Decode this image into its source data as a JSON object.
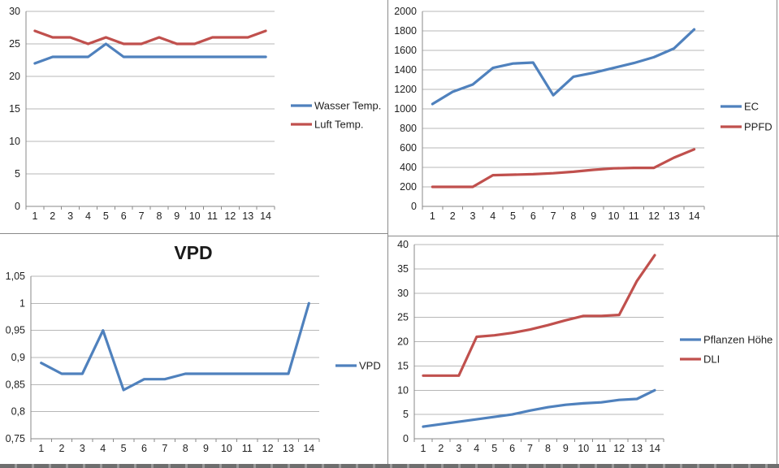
{
  "colors": {
    "series_blue": "#4F81BD",
    "series_red": "#C0504D",
    "gridline": "#B7B7B7",
    "axis_line": "#8A8A8A",
    "tick_text": "#1F1F1F",
    "divider": "#8A8A8A",
    "bottom_strip_dark": "#6E6E6E",
    "bottom_strip_light": "#9A9A9A"
  },
  "chart_data": [
    {
      "id": "temperature",
      "type": "line",
      "title": "",
      "categories": [
        "1",
        "2",
        "3",
        "4",
        "5",
        "6",
        "7",
        "8",
        "9",
        "10",
        "11",
        "12",
        "13",
        "14"
      ],
      "series": [
        {
          "name": "Wasser Temp.",
          "color": "#4F81BD",
          "values": [
            22,
            23,
            23,
            23,
            25,
            23,
            23,
            23,
            23,
            23,
            23,
            23,
            23,
            23
          ]
        },
        {
          "name": "Luft Temp.",
          "color": "#C0504D",
          "values": [
            27,
            26,
            26,
            25,
            26,
            25,
            25,
            26,
            25,
            25,
            26,
            26,
            26,
            27
          ]
        }
      ],
      "ylim": [
        0,
        30
      ],
      "ystep": 5,
      "ytick_labels": [
        "0",
        "5",
        "10",
        "15",
        "20",
        "25",
        "30"
      ],
      "legend_position": "right",
      "grid": true
    },
    {
      "id": "ec_ppfd",
      "type": "line",
      "title": "",
      "categories": [
        "1",
        "2",
        "3",
        "4",
        "5",
        "6",
        "7",
        "8",
        "9",
        "10",
        "11",
        "12",
        "13",
        "14"
      ],
      "series": [
        {
          "name": "EC",
          "color": "#4F81BD",
          "values": [
            1050,
            1175,
            1250,
            1420,
            1465,
            1475,
            1140,
            1330,
            1370,
            1420,
            1470,
            1530,
            1620,
            1815
          ]
        },
        {
          "name": "PPFD",
          "color": "#C0504D",
          "values": [
            200,
            200,
            200,
            320,
            325,
            330,
            340,
            355,
            375,
            390,
            395,
            395,
            500,
            585
          ]
        }
      ],
      "ylim": [
        0,
        2000
      ],
      "ystep": 200,
      "ytick_labels": [
        "0",
        "200",
        "400",
        "600",
        "800",
        "1000",
        "1200",
        "1400",
        "1600",
        "1800",
        "2000"
      ],
      "legend_position": "right",
      "grid": true
    },
    {
      "id": "vpd",
      "type": "line",
      "title": "VPD",
      "categories": [
        "1",
        "2",
        "3",
        "4",
        "5",
        "6",
        "7",
        "8",
        "9",
        "10",
        "11",
        "12",
        "13",
        "14"
      ],
      "series": [
        {
          "name": "VPD",
          "color": "#4F81BD",
          "values": [
            0.89,
            0.87,
            0.87,
            0.95,
            0.84,
            0.86,
            0.86,
            0.87,
            0.87,
            0.87,
            0.87,
            0.87,
            0.87,
            1.0
          ]
        }
      ],
      "ylim": [
        0.75,
        1.05
      ],
      "ystep": 0.05,
      "ytick_labels": [
        "0,75",
        "0,8",
        "0,85",
        "0,9",
        "0,95",
        "1",
        "1,05"
      ],
      "legend_position": "right",
      "grid": true
    },
    {
      "id": "hoehe_dli",
      "type": "line",
      "title": "",
      "categories": [
        "1",
        "2",
        "3",
        "4",
        "5",
        "6",
        "7",
        "8",
        "9",
        "10",
        "11",
        "12",
        "13",
        "14"
      ],
      "series": [
        {
          "name": "Pflanzen Höhe",
          "color": "#4F81BD",
          "values": [
            2.5,
            3,
            3.5,
            4,
            4.5,
            5,
            5.8,
            6.5,
            7,
            7.3,
            7.5,
            8,
            8.2,
            10
          ]
        },
        {
          "name": "DLI",
          "color": "#C0504D",
          "values": [
            13,
            13,
            13,
            21,
            21.3,
            21.8,
            22.5,
            23.4,
            24.4,
            25.3,
            25.3,
            25.5,
            32.5,
            37.8
          ]
        }
      ],
      "ylim": [
        0,
        40
      ],
      "ystep": 5,
      "ytick_labels": [
        "0",
        "5",
        "10",
        "15",
        "20",
        "25",
        "30",
        "35",
        "40"
      ],
      "legend_position": "right",
      "grid": true
    }
  ]
}
